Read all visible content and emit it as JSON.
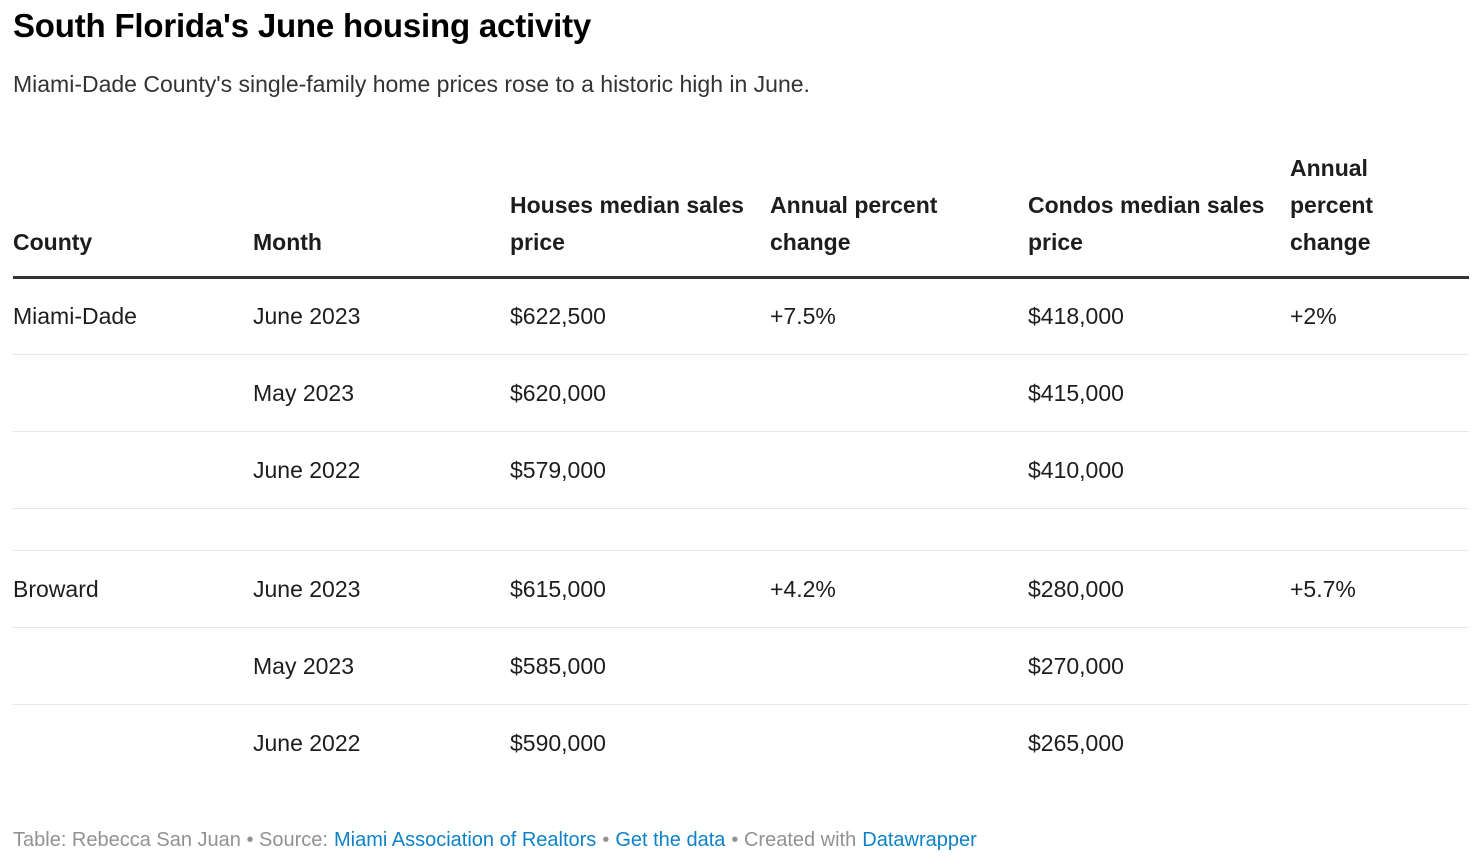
{
  "header": {
    "title": "South Florida's June housing activity",
    "subtitle": "Miami-Dade County's single-family home prices rose to a historic high in June."
  },
  "chart_data": {
    "type": "table",
    "title": "South Florida's June housing activity",
    "subtitle": "Miami-Dade County's single-family home prices rose to a historic high in June.",
    "columns": [
      "County",
      "Month",
      "Houses median sales price",
      "Annual percent change",
      "Condos median sales price",
      "Annual percent change"
    ],
    "rows": [
      [
        "Miami-Dade",
        "June 2023",
        "$622,500",
        "+7.5%",
        "$418,000",
        "+2%"
      ],
      [
        "",
        "May 2023",
        "$620,000",
        "",
        "$415,000",
        ""
      ],
      [
        "",
        "June 2022",
        "$579,000",
        "",
        "$410,000",
        ""
      ],
      null,
      [
        "Broward",
        "June 2023",
        "$615,000",
        "+4.2%",
        "$280,000",
        "+5.7%"
      ],
      [
        "",
        "May 2023",
        "$585,000",
        "",
        "$270,000",
        ""
      ],
      [
        "",
        "June 2022",
        "$590,000",
        "",
        "$265,000",
        ""
      ]
    ],
    "layout": {
      "header_rule_color": "#333333",
      "row_divider_color": "#e8e8e8",
      "group_spacer_after_row": 2
    }
  },
  "footer": {
    "credit": "Table: Rebecca San Juan • Source:",
    "source_link": "Miami Association of Realtors",
    "separator": "•",
    "get_data_link": "Get the data",
    "created_with": "• Created with",
    "creator_link": "Datawrapper",
    "link_color": "#0e82c8",
    "text_color": "#929292"
  }
}
